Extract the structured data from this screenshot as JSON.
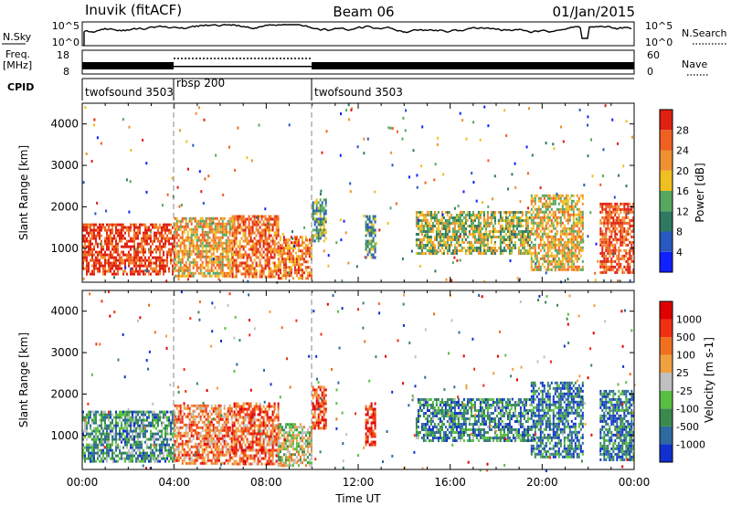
{
  "header": {
    "station": "Inuvik (fitACF)",
    "beam": "Beam 06",
    "date": "01/Jan/2015"
  },
  "top_panels": {
    "nsky": {
      "label": "N.Sky",
      "left_ticks": [
        "10^5",
        "10^0"
      ],
      "right_ticks": [
        "10^5",
        "10^0"
      ],
      "right_label": "N.Search",
      "right_line": "dotted"
    },
    "freq": {
      "label_line1": "Freq.",
      "label_line2": "[MHz]",
      "left_ticks": [
        "18",
        "8"
      ],
      "right_ticks": [
        "60",
        "0"
      ],
      "right_label": "Nave",
      "right_line": "dotted"
    },
    "cpid": {
      "label": "CPID",
      "segments": [
        {
          "name": "twofsound 3503",
          "start": 0,
          "end": 4
        },
        {
          "name": "rbsp 200",
          "start": 4,
          "end": 10
        },
        {
          "name": "twofsound 3503",
          "start": 10,
          "end": 24
        }
      ]
    }
  },
  "chart_data": [
    {
      "type": "heatmap",
      "title": "",
      "parameter": "Power",
      "ylabel": "Slant Range [km]",
      "xlabel": "",
      "xlim": [
        0,
        24
      ],
      "ylim": [
        180,
        4500
      ],
      "yticks": [
        1000,
        2000,
        3000,
        4000
      ],
      "colorbar": {
        "label": "Power [dB]",
        "ticks": [
          "4",
          "8",
          "12",
          "16",
          "20",
          "24",
          "28"
        ],
        "colors": [
          "#1020ff",
          "#2858c0",
          "#2e7a60",
          "#55a860",
          "#f0c020",
          "#f09030",
          "#f06020",
          "#e02010"
        ]
      },
      "echo_regions": [
        {
          "x": [
            0,
            4
          ],
          "y": [
            400,
            1600
          ],
          "level": 0.9
        },
        {
          "x": [
            4,
            6.5
          ],
          "y": [
            300,
            1750
          ],
          "level": 0.65
        },
        {
          "x": [
            6.5,
            8.5
          ],
          "y": [
            300,
            1800
          ],
          "level": 0.8
        },
        {
          "x": [
            8.5,
            10.0
          ],
          "y": [
            300,
            1300
          ],
          "level": 0.75
        },
        {
          "x": [
            10.0,
            10.6
          ],
          "y": [
            1200,
            2200
          ],
          "level": 0.4
        },
        {
          "x": [
            12.3,
            12.7
          ],
          "y": [
            800,
            1800
          ],
          "level": 0.35
        },
        {
          "x": [
            14.5,
            19.5
          ],
          "y": [
            900,
            1900
          ],
          "level": 0.5
        },
        {
          "x": [
            19.5,
            21.8
          ],
          "y": [
            500,
            2300
          ],
          "level": 0.6
        },
        {
          "x": [
            22.5,
            24
          ],
          "y": [
            400,
            2100
          ],
          "level": 0.85
        }
      ]
    },
    {
      "type": "heatmap",
      "title": "",
      "parameter": "Velocity",
      "ylabel": "Slant Range [km]",
      "xlabel": "Time UT",
      "xlim": [
        0,
        24
      ],
      "ylim": [
        180,
        4500
      ],
      "yticks": [
        1000,
        2000,
        3000,
        4000
      ],
      "xticks": [
        "00:00",
        "04:00",
        "08:00",
        "12:00",
        "16:00",
        "20:00",
        "00:00"
      ],
      "colorbar": {
        "label": "Velocity [m s-1]",
        "ticks": [
          "1000",
          "500",
          "100",
          "25",
          "-25",
          "-100",
          "-500",
          "-1000"
        ],
        "colors": [
          "#1030d0",
          "#2e6aa0",
          "#3a8a50",
          "#58c040",
          "#c0c0c0",
          "#f0a040",
          "#f07020",
          "#f03010",
          "#e00000"
        ]
      },
      "echo_regions": [
        {
          "x": [
            0,
            4
          ],
          "y": [
            400,
            1600
          ],
          "level": 0.3
        },
        {
          "x": [
            4,
            6.5
          ],
          "y": [
            300,
            1750
          ],
          "level": 0.7
        },
        {
          "x": [
            6.5,
            8.5
          ],
          "y": [
            300,
            1800
          ],
          "level": 0.75
        },
        {
          "x": [
            8.5,
            10.0
          ],
          "y": [
            300,
            1300
          ],
          "level": 0.5
        },
        {
          "x": [
            10.0,
            10.6
          ],
          "y": [
            1200,
            2200
          ],
          "level": 0.8
        },
        {
          "x": [
            12.3,
            12.7
          ],
          "y": [
            800,
            1800
          ],
          "level": 0.9
        },
        {
          "x": [
            14.5,
            19.5
          ],
          "y": [
            900,
            1900
          ],
          "level": 0.25
        },
        {
          "x": [
            19.5,
            21.8
          ],
          "y": [
            500,
            2300
          ],
          "level": 0.2
        },
        {
          "x": [
            22.5,
            24
          ],
          "y": [
            400,
            2100
          ],
          "level": 0.2
        }
      ]
    }
  ]
}
